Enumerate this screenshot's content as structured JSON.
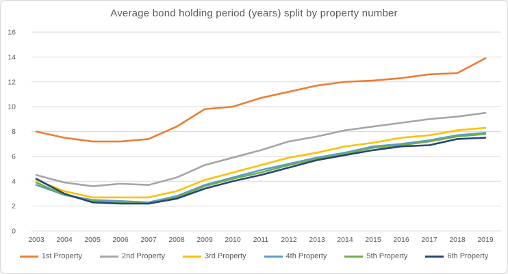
{
  "chart_data": {
    "type": "line",
    "title": "Average bond holding period (years) split by property number",
    "xlabel": "",
    "ylabel": "",
    "x": [
      2003,
      2004,
      2005,
      2006,
      2007,
      2008,
      2009,
      2010,
      2011,
      2012,
      2013,
      2014,
      2015,
      2016,
      2017,
      2018,
      2019
    ],
    "series": [
      {
        "name": "1st Property",
        "color": "#ED7D31",
        "values": [
          8.0,
          7.5,
          7.2,
          7.2,
          7.4,
          8.4,
          9.8,
          10.0,
          10.7,
          11.2,
          11.7,
          12.0,
          12.1,
          12.3,
          12.6,
          12.7,
          13.9
        ]
      },
      {
        "name": "2nd Property",
        "color": "#A5A5A5",
        "values": [
          4.5,
          3.9,
          3.6,
          3.8,
          3.7,
          4.3,
          5.3,
          5.9,
          6.5,
          7.2,
          7.6,
          8.1,
          8.4,
          8.7,
          9.0,
          9.2,
          9.5
        ]
      },
      {
        "name": "3rd Property",
        "color": "#FFC000",
        "values": [
          4.1,
          3.2,
          2.7,
          2.7,
          2.7,
          3.2,
          4.1,
          4.7,
          5.3,
          5.9,
          6.3,
          6.8,
          7.1,
          7.5,
          7.7,
          8.1,
          8.3
        ]
      },
      {
        "name": "4th Property",
        "color": "#5B9BD5",
        "values": [
          3.7,
          2.9,
          2.5,
          2.4,
          2.3,
          2.8,
          3.7,
          4.3,
          4.9,
          5.4,
          5.9,
          6.3,
          6.8,
          7.0,
          7.3,
          7.7,
          7.9
        ]
      },
      {
        "name": "5th Property",
        "color": "#70AD47",
        "values": [
          3.9,
          2.9,
          2.4,
          2.3,
          2.2,
          2.7,
          3.6,
          4.2,
          4.7,
          5.3,
          5.8,
          6.2,
          6.7,
          6.9,
          7.2,
          7.6,
          7.8
        ]
      },
      {
        "name": "6th Property",
        "color": "#264478",
        "values": [
          4.2,
          3.0,
          2.3,
          2.2,
          2.2,
          2.6,
          3.4,
          4.0,
          4.5,
          5.1,
          5.7,
          6.1,
          6.5,
          6.8,
          6.9,
          7.4,
          7.5
        ]
      }
    ],
    "ylim": [
      0,
      16
    ],
    "ytick_step": 2,
    "grid": true,
    "legend_position": "bottom"
  },
  "style": {
    "background": "#ffffff",
    "border_color": "#d7d7d7",
    "gridline_color": "#d9d9d9",
    "text_color": "#595959"
  }
}
